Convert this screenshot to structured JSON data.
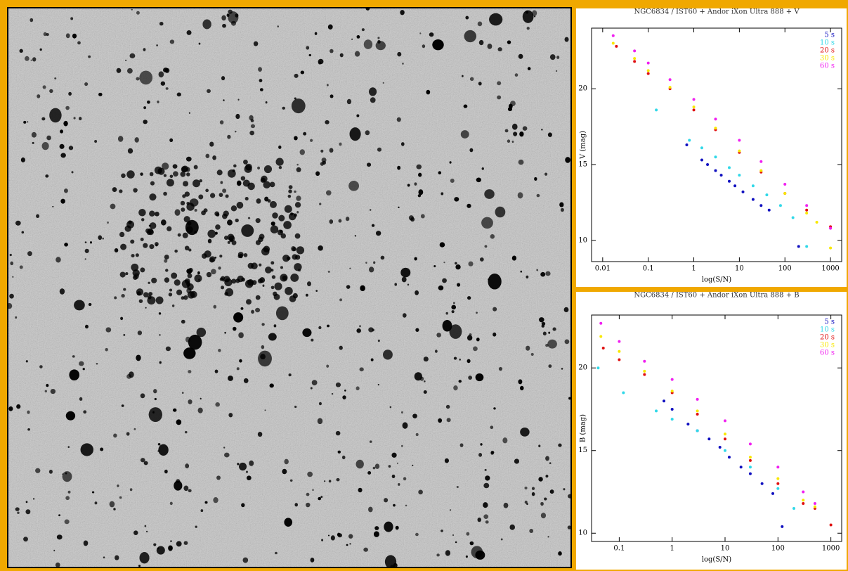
{
  "chart_data": [
    {
      "type": "scatter",
      "title": "NGC6834 / IST60 + Andor iXon Ultra 888 + V",
      "xlabel": "log(S/N)",
      "ylabel": "V (mag)",
      "xscale": "log",
      "xlim": [
        0.0057,
        1760
      ],
      "xticks": [
        0.01,
        0.1,
        1,
        10,
        100,
        1000
      ],
      "ylim": [
        8.6,
        24
      ],
      "yticks": [
        10,
        15,
        20
      ],
      "legend": "upper right",
      "series": [
        {
          "name": "5 s",
          "color": "#1010c0",
          "x": [
            0.7,
            1.5,
            2,
            3,
            4,
            6,
            8,
            12,
            20,
            30,
            45,
            200
          ],
          "values": [
            16.3,
            15.3,
            15.0,
            14.6,
            14.3,
            13.9,
            13.6,
            13.2,
            12.7,
            12.3,
            12.0,
            9.6
          ]
        },
        {
          "name": "10 s",
          "color": "#30d8e8",
          "x": [
            0.15,
            0.8,
            1.5,
            3,
            6,
            10,
            20,
            40,
            80,
            150,
            300
          ],
          "values": [
            18.6,
            16.6,
            16.1,
            15.5,
            14.8,
            14.3,
            13.6,
            13.0,
            12.3,
            11.5,
            9.6
          ]
        },
        {
          "name": "20 s",
          "color": "#e01010",
          "x": [
            0.02,
            0.05,
            0.1,
            0.3,
            1,
            3,
            10,
            30,
            100,
            300,
            1000
          ],
          "values": [
            22.8,
            21.8,
            21.0,
            20.0,
            18.6,
            17.3,
            15.8,
            14.5,
            13.1,
            12.0,
            10.9
          ]
        },
        {
          "name": "30 s",
          "color": "#f8e800",
          "x": [
            0.017,
            0.05,
            0.1,
            0.3,
            1,
            3,
            10,
            30,
            100,
            300,
            500,
            1000
          ],
          "values": [
            23.0,
            22.0,
            21.2,
            20.1,
            18.8,
            17.4,
            15.9,
            14.6,
            13.1,
            11.8,
            11.2,
            9.5
          ]
        },
        {
          "name": "60 s",
          "color": "#f020f0",
          "x": [
            0.017,
            0.05,
            0.1,
            0.3,
            1,
            3,
            10,
            30,
            100,
            300,
            1000
          ],
          "values": [
            23.5,
            22.5,
            21.7,
            20.6,
            19.3,
            18.0,
            16.6,
            15.2,
            13.7,
            12.3,
            10.8
          ]
        }
      ]
    },
    {
      "type": "scatter",
      "title": "NGC6834 / IST60 + Andor iXon Ultra 888 + B",
      "xlabel": "log(S/N)",
      "ylabel": "B (mag)",
      "xscale": "log",
      "xlim": [
        0.03,
        1600
      ],
      "xticks": [
        0.1,
        1,
        10,
        100,
        1000
      ],
      "ylim": [
        9.5,
        23.2
      ],
      "yticks": [
        10,
        15,
        20
      ],
      "legend": "upper right",
      "series": [
        {
          "name": "5 s",
          "color": "#1010c0",
          "x": [
            0.7,
            1,
            2,
            3,
            5,
            8,
            12,
            20,
            30,
            50,
            80,
            120
          ],
          "values": [
            18.0,
            17.5,
            16.6,
            16.2,
            15.7,
            15.2,
            14.6,
            14.0,
            13.6,
            13.0,
            12.4,
            10.4
          ]
        },
        {
          "name": "10 s",
          "color": "#30d8e8",
          "x": [
            0.04,
            0.12,
            0.5,
            1,
            3,
            10,
            30,
            100,
            200
          ],
          "values": [
            20.0,
            18.5,
            17.4,
            16.9,
            16.2,
            15.0,
            14.0,
            12.7,
            11.5
          ]
        },
        {
          "name": "20 s",
          "color": "#e01010",
          "x": [
            0.05,
            0.1,
            0.3,
            1,
            3,
            10,
            30,
            100,
            300,
            500,
            1000
          ],
          "values": [
            21.2,
            20.5,
            19.6,
            18.5,
            17.2,
            15.7,
            14.4,
            13.0,
            11.8,
            11.5,
            10.5
          ]
        },
        {
          "name": "30 s",
          "color": "#f8e800",
          "x": [
            0.045,
            0.1,
            0.3,
            1,
            3,
            10,
            30,
            100,
            300,
            500
          ],
          "values": [
            21.9,
            21.0,
            19.8,
            18.6,
            17.4,
            16.0,
            14.6,
            13.3,
            12.0,
            11.6
          ]
        },
        {
          "name": "60 s",
          "color": "#f020f0",
          "x": [
            0.045,
            0.1,
            0.3,
            1,
            3,
            10,
            30,
            100,
            300,
            500
          ],
          "values": [
            22.7,
            21.6,
            20.4,
            19.3,
            18.1,
            16.8,
            15.4,
            14.0,
            12.5,
            11.8
          ]
        }
      ]
    }
  ]
}
